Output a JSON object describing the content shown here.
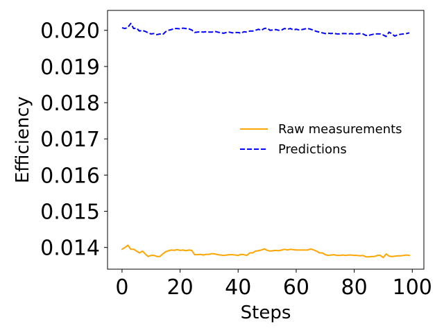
{
  "chart_data": {
    "type": "line",
    "title": "",
    "xlabel": "Steps",
    "ylabel": "Efficiency",
    "xlim": [
      -5,
      104
    ],
    "ylim": [
      0.0134,
      0.02055
    ],
    "xticks": [
      0,
      20,
      40,
      60,
      80,
      100
    ],
    "yticks": [
      0.014,
      0.015,
      0.016,
      0.017,
      0.018,
      0.019,
      0.02
    ],
    "ytick_labels": [
      "0.014",
      "0.015",
      "0.016",
      "0.017",
      "0.018",
      "0.019",
      "0.020"
    ],
    "grid": false,
    "legend": "center-right",
    "x": [
      0,
      1,
      2,
      3,
      4,
      5,
      6,
      7,
      8,
      9,
      10,
      11,
      12,
      13,
      14,
      15,
      16,
      17,
      18,
      19,
      20,
      21,
      22,
      23,
      24,
      25,
      26,
      27,
      28,
      29,
      30,
      31,
      32,
      33,
      34,
      35,
      36,
      37,
      38,
      39,
      40,
      41,
      42,
      43,
      44,
      45,
      46,
      47,
      48,
      49,
      50,
      51,
      52,
      53,
      54,
      55,
      56,
      57,
      58,
      59,
      60,
      61,
      62,
      63,
      64,
      65,
      66,
      67,
      68,
      69,
      70,
      71,
      72,
      73,
      74,
      75,
      76,
      77,
      78,
      79,
      80,
      81,
      82,
      83,
      84,
      85,
      86,
      87,
      88,
      89,
      90,
      91,
      92,
      93,
      94,
      95,
      96,
      97,
      98,
      99
    ],
    "series": [
      {
        "name": "Raw measurements",
        "color": "#ffa500",
        "style": "solid",
        "values": [
          0.01395,
          0.014,
          0.01406,
          0.01395,
          0.01395,
          0.0139,
          0.01385,
          0.0139,
          0.01382,
          0.01375,
          0.01378,
          0.01378,
          0.01375,
          0.01375,
          0.01382,
          0.01388,
          0.01391,
          0.01393,
          0.01392,
          0.01394,
          0.01392,
          0.01393,
          0.01391,
          0.01393,
          0.01392,
          0.0138,
          0.0138,
          0.01381,
          0.01379,
          0.01381,
          0.01381,
          0.01383,
          0.01382,
          0.0138,
          0.01379,
          0.01378,
          0.01379,
          0.0138,
          0.0138,
          0.01379,
          0.01378,
          0.01381,
          0.0138,
          0.01378,
          0.01385,
          0.01385,
          0.0139,
          0.01391,
          0.01393,
          0.01396,
          0.01392,
          0.0139,
          0.01391,
          0.01392,
          0.01391,
          0.01393,
          0.01395,
          0.01393,
          0.01395,
          0.01394,
          0.01393,
          0.01393,
          0.01393,
          0.01393,
          0.01393,
          0.01396,
          0.01393,
          0.0139,
          0.01385,
          0.01385,
          0.0138,
          0.01378,
          0.01379,
          0.0138,
          0.01378,
          0.01378,
          0.01379,
          0.01378,
          0.01379,
          0.01379,
          0.01378,
          0.01378,
          0.01377,
          0.01378,
          0.01374,
          0.01374,
          0.01375,
          0.01375,
          0.01378,
          0.01378,
          0.01372,
          0.01382,
          0.01376,
          0.01375,
          0.01376,
          0.01377,
          0.01377,
          0.01378,
          0.01379,
          0.01378
        ]
      },
      {
        "name": "Predictions",
        "color": "#0000ff",
        "style": "dashed",
        "values": [
          0.02007,
          0.02005,
          0.02008,
          0.02019,
          0.02005,
          0.02006,
          0.01998,
          0.02,
          0.01997,
          0.01993,
          0.0199,
          0.01991,
          0.01988,
          0.0199,
          0.01988,
          0.01996,
          0.02,
          0.02002,
          0.02005,
          0.02005,
          0.02004,
          0.02006,
          0.02005,
          0.02004,
          0.02001,
          0.01994,
          0.01995,
          0.01996,
          0.01995,
          0.01996,
          0.01995,
          0.01995,
          0.01997,
          0.01995,
          0.01993,
          0.01992,
          0.01994,
          0.01995,
          0.01993,
          0.01994,
          0.01994,
          0.01992,
          0.01996,
          0.01995,
          0.01998,
          0.01998,
          0.02,
          0.02003,
          0.02,
          0.02005,
          0.02006,
          0.02,
          0.02001,
          0.02002,
          0.02,
          0.02001,
          0.02005,
          0.02003,
          0.02005,
          0.02001,
          0.02003,
          0.02001,
          0.02002,
          0.02004,
          0.02005,
          0.02003,
          0.02,
          0.01997,
          0.01995,
          0.01993,
          0.01991,
          0.01992,
          0.01991,
          0.01992,
          0.0199,
          0.0199,
          0.01991,
          0.01991,
          0.0199,
          0.01991,
          0.01989,
          0.0199,
          0.01991,
          0.0199,
          0.01986,
          0.01986,
          0.01988,
          0.0199,
          0.0199,
          0.0199,
          0.01987,
          0.01983,
          0.01995,
          0.0199,
          0.01984,
          0.01988,
          0.01989,
          0.0199,
          0.01991,
          0.01993
        ]
      }
    ]
  }
}
